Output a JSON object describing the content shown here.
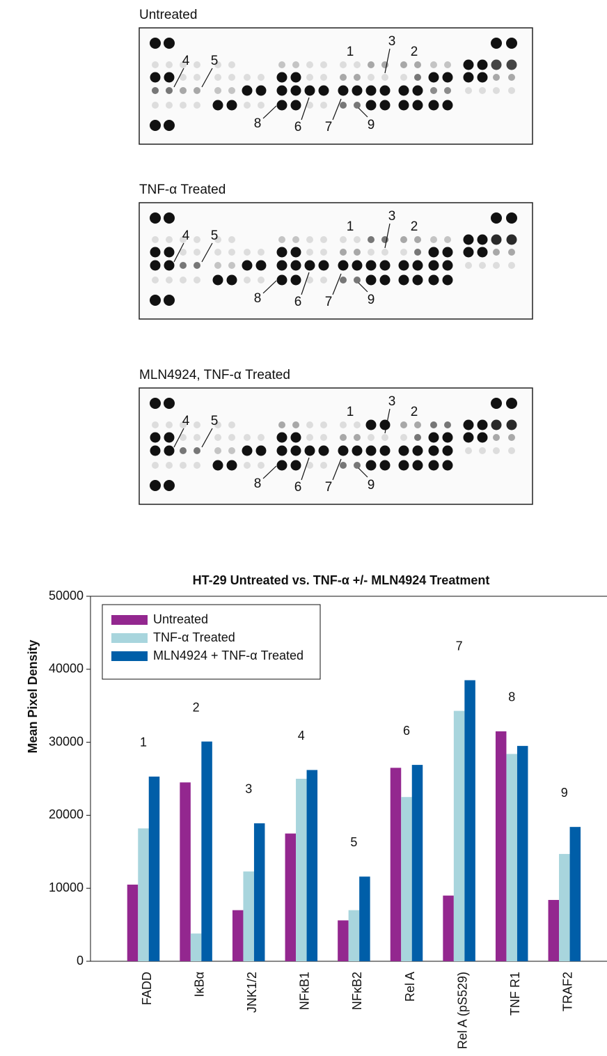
{
  "blots": [
    {
      "title": "Untreated",
      "annotations": [
        "1",
        "2",
        "3",
        "4",
        "5",
        "6",
        "7",
        "8",
        "9"
      ]
    },
    {
      "title": "TNF-α Treated",
      "annotations": [
        "1",
        "2",
        "3",
        "4",
        "5",
        "6",
        "7",
        "8",
        "9"
      ]
    },
    {
      "title": "MLN4924, TNF-α Treated",
      "annotations": [
        "1",
        "2",
        "3",
        "4",
        "5",
        "6",
        "7",
        "8",
        "9"
      ]
    }
  ],
  "chart_data": {
    "type": "bar",
    "title": "HT-29 Untreated vs. TNF-α +/- MLN4924 Treatment",
    "y_label": "Mean Pixel Density",
    "categories": [
      "FADD",
      "IκBα",
      "JNK1/2",
      "NFκB1",
      "NFκB2",
      "Rel A",
      "Rel A (pS529)",
      "TNF R1",
      "TRAF2"
    ],
    "bar_labels": [
      "1",
      "2",
      "3",
      "4",
      "5",
      "6",
      "7",
      "8",
      "9"
    ],
    "series": [
      {
        "name": "Untreated",
        "color": "#93278f",
        "values": [
          10500,
          24500,
          7000,
          17500,
          5600,
          26500,
          9000,
          31500,
          8400
        ]
      },
      {
        "name": "TNF-α Treated",
        "color": "#a8d5dd",
        "values": [
          18200,
          3800,
          12300,
          25000,
          7000,
          22500,
          34300,
          28400,
          14700
        ]
      },
      {
        "name": "MLN4924 + TNF-α Treated",
        "color": "#005ea8",
        "values": [
          25300,
          30100,
          18900,
          26200,
          11600,
          26900,
          38500,
          29500,
          18400
        ]
      }
    ],
    "ylim": [
      0,
      50000
    ],
    "yticks": [
      0,
      10000,
      20000,
      30000,
      40000,
      50000
    ],
    "legend": "upper-left"
  }
}
